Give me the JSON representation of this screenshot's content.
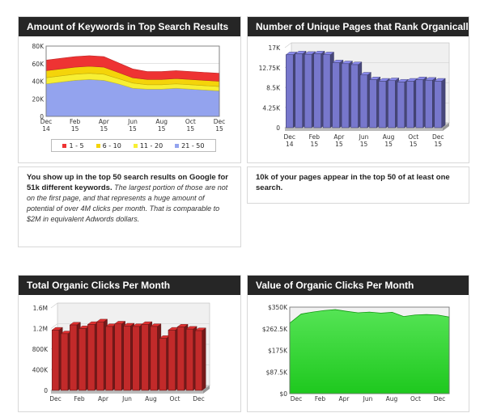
{
  "panels": [
    {
      "title": "Amount of Keywords in Top Search Results",
      "legend": [
        {
          "label": "1 - 5",
          "color": "#ee3333"
        },
        {
          "label": "6 - 10",
          "color": "#f4d40a"
        },
        {
          "label": "11 - 20",
          "color": "#f7ef33"
        },
        {
          "label": "21 - 50",
          "color": "#93a3ee"
        }
      ]
    },
    {
      "title": "Number of Unique Pages that Rank Organically"
    },
    {
      "title": "Total Organic Clicks Per Month"
    },
    {
      "title": "Value of Organic Clicks Per Month"
    }
  ],
  "text_blocks": {
    "keywords_bold": "You show up in the top 50 search results on Google for 51k different keywords.",
    "keywords_italic": "The largest portion of those are not on the first page, and that represents a huge amount of potential of over 4M clicks per month. That is comparable to $2M in equivalent Adwords dollars.",
    "pages_bold": "10k of your pages appear in the top 50 of at least one search."
  },
  "chart_data": [
    {
      "type": "area",
      "title": "Amount of Keywords in Top Search Results",
      "stacked": true,
      "x": [
        "2014-12",
        "2015-01",
        "2015-02",
        "2015-03",
        "2015-04",
        "2015-05",
        "2015-06",
        "2015-07",
        "2015-08",
        "2015-09",
        "2015-10",
        "2015-11",
        "2015-12"
      ],
      "x_tick_labels": [
        "Dec\n14",
        "Feb\n15",
        "Apr\n15",
        "Jun\n15",
        "Aug\n15",
        "Oct\n15",
        "Dec\n15"
      ],
      "y_ticks": [
        "0",
        "20K",
        "40K",
        "60K",
        "80K"
      ],
      "ylim": [
        0,
        80000
      ],
      "series": [
        {
          "name": "21 - 50",
          "color": "#93a3ee",
          "values": [
            37000,
            39000,
            41000,
            42000,
            41000,
            37000,
            32000,
            31000,
            31000,
            32000,
            31000,
            30000,
            29000
          ]
        },
        {
          "name": "11 - 20",
          "color": "#f7ef33",
          "values": [
            7000,
            7000,
            7000,
            7000,
            7000,
            6000,
            6000,
            5000,
            5000,
            5000,
            5000,
            5000,
            5000
          ]
        },
        {
          "name": "6 - 10",
          "color": "#f4d40a",
          "values": [
            8000,
            8000,
            8000,
            8000,
            8000,
            7000,
            6000,
            6000,
            6000,
            6000,
            6000,
            6000,
            6000
          ]
        },
        {
          "name": "1 - 5",
          "color": "#ee3333",
          "values": [
            12000,
            12000,
            12000,
            12000,
            12000,
            11000,
            10000,
            9000,
            9000,
            9000,
            9000,
            9000,
            9000
          ]
        }
      ],
      "legend_position": "bottom",
      "grid": true
    },
    {
      "type": "bar",
      "title": "Number of Unique Pages that Rank Organically",
      "x_tick_labels": [
        "Dec\n14",
        "Feb\n15",
        "Apr\n15",
        "Jun\n15",
        "Aug\n15",
        "Oct\n15",
        "Dec\n15"
      ],
      "y_ticks": [
        "0",
        "4.25K",
        "8.5K",
        "12.75K",
        "17K"
      ],
      "ylim": [
        0,
        17000
      ],
      "color": "#7777cc",
      "values": [
        15500,
        15700,
        15600,
        15700,
        15500,
        13800,
        13600,
        13400,
        11200,
        10200,
        9900,
        10000,
        9700,
        9900,
        10200,
        10100,
        9900
      ],
      "grid": true
    },
    {
      "type": "bar",
      "title": "Total Organic Clicks Per Month",
      "x_tick_labels": [
        "Dec",
        "Feb",
        "Apr",
        "Jun",
        "Aug",
        "Oct",
        "Dec"
      ],
      "y_ticks": [
        "0",
        "400K",
        "800K",
        "1.2M",
        "1.6M"
      ],
      "ylim": [
        0,
        1600000
      ],
      "color": "#c22a2a",
      "values": [
        1170000,
        1100000,
        1270000,
        1200000,
        1280000,
        1330000,
        1240000,
        1290000,
        1250000,
        1240000,
        1280000,
        1240000,
        1010000,
        1170000,
        1230000,
        1190000,
        1160000
      ],
      "grid": true
    },
    {
      "type": "area",
      "title": "Value of Organic Clicks Per Month",
      "x_tick_labels": [
        "Dec",
        "Feb",
        "Apr",
        "Jun",
        "Aug",
        "Oct",
        "Dec"
      ],
      "y_ticks": [
        "$0",
        "$87.5K",
        "$175K",
        "$262.5K",
        "$350K"
      ],
      "ylim": [
        0,
        350000
      ],
      "color": "#2bd12b",
      "values": [
        285000,
        322000,
        330000,
        336000,
        340000,
        333000,
        327000,
        330000,
        326000,
        329000,
        312000,
        318000,
        320000,
        318000,
        310000
      ],
      "grid": true
    }
  ]
}
